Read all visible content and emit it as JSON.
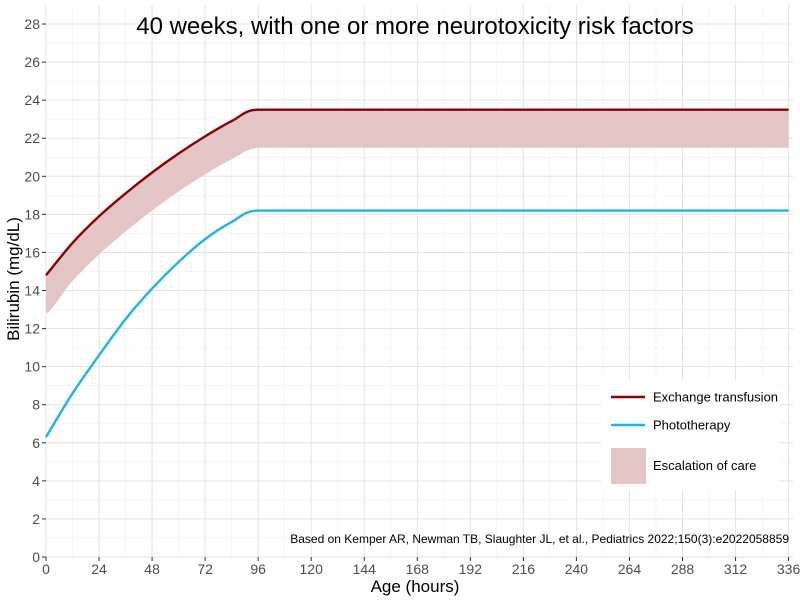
{
  "chart_data": {
    "type": "line",
    "title": "40 weeks, with one or more neurotoxicity risk factors",
    "xlabel": "Age (hours)",
    "ylabel": "Bilirubin (mg/dL)",
    "xlim": [
      0,
      338
    ],
    "ylim": [
      0,
      29
    ],
    "x_ticks": [
      0,
      24,
      48,
      72,
      96,
      120,
      144,
      168,
      192,
      216,
      240,
      264,
      288,
      312,
      336
    ],
    "y_ticks": [
      0,
      2,
      4,
      6,
      8,
      10,
      12,
      14,
      16,
      18,
      20,
      22,
      24,
      26,
      28
    ],
    "grid": true,
    "legend_position": "bottom-right",
    "citation": "Based on Kemper AR, Newman TB, Slaughter JL, et al., Pediatrics 2022;150(3):e2022058859",
    "series": [
      {
        "name": "Exchange transfusion",
        "kind": "line",
        "color": "#8b0000",
        "x": [
          0,
          12,
          24,
          36,
          48,
          60,
          72,
          84,
          96,
          120,
          144,
          168,
          192,
          216,
          240,
          264,
          288,
          312,
          336
        ],
        "values": [
          14.8,
          16.5,
          17.9,
          19.1,
          20.2,
          21.2,
          22.1,
          22.9,
          23.5,
          23.5,
          23.5,
          23.5,
          23.5,
          23.5,
          23.5,
          23.5,
          23.5,
          23.5,
          23.5
        ]
      },
      {
        "name": "Phototherapy",
        "kind": "line",
        "color": "#1fb4ee",
        "x": [
          0,
          12,
          24,
          36,
          48,
          60,
          72,
          84,
          96,
          120,
          144,
          168,
          192,
          216,
          240,
          264,
          288,
          312,
          336
        ],
        "values": [
          6.3,
          8.6,
          10.6,
          12.5,
          14.1,
          15.5,
          16.7,
          17.6,
          18.2,
          18.2,
          18.2,
          18.2,
          18.2,
          18.2,
          18.2,
          18.2,
          18.2,
          18.2,
          18.2
        ]
      },
      {
        "name": "Escalation of care",
        "kind": "band",
        "color": "#e3c5c5",
        "x": [
          0,
          12,
          24,
          36,
          48,
          60,
          72,
          84,
          96,
          120,
          144,
          168,
          192,
          216,
          240,
          264,
          288,
          312,
          336
        ],
        "lower": [
          12.8,
          14.5,
          15.9,
          17.1,
          18.2,
          19.2,
          20.1,
          20.9,
          21.5,
          21.5,
          21.5,
          21.5,
          21.5,
          21.5,
          21.5,
          21.5,
          21.5,
          21.5,
          21.5
        ],
        "upper": [
          14.8,
          16.5,
          17.9,
          19.1,
          20.2,
          21.2,
          22.1,
          22.9,
          23.5,
          23.5,
          23.5,
          23.5,
          23.5,
          23.5,
          23.5,
          23.5,
          23.5,
          23.5,
          23.5
        ]
      }
    ]
  }
}
